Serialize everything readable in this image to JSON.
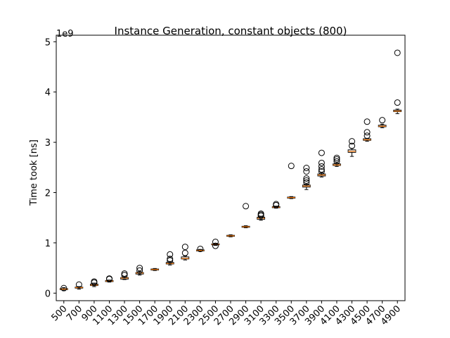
{
  "chart_data": {
    "type": "box",
    "title": "Instance Generation, constant objects (800)",
    "y_label": "Time took [ns]",
    "y_offset_label": "1e9",
    "categories": [
      "500",
      "700",
      "900",
      "1100",
      "1300",
      "1500",
      "1700",
      "1900",
      "2100",
      "2300",
      "2500",
      "2700",
      "2900",
      "3100",
      "3300",
      "3500",
      "3700",
      "3900",
      "4100",
      "4300",
      "4500",
      "4700",
      "4900"
    ],
    "boxes": [
      {
        "whislo": 0.05,
        "q1": 0.07,
        "median": 0.08,
        "q3": 0.09,
        "whishi": 0.11,
        "fliers": [
          0.1
        ]
      },
      {
        "whislo": 0.08,
        "q1": 0.1,
        "median": 0.11,
        "q3": 0.12,
        "whishi": 0.13,
        "fliers": [
          0.17
        ]
      },
      {
        "whislo": 0.13,
        "q1": 0.15,
        "median": 0.16,
        "q3": 0.18,
        "whishi": 0.2,
        "fliers": [
          0.21,
          0.23
        ]
      },
      {
        "whislo": 0.22,
        "q1": 0.23,
        "median": 0.24,
        "q3": 0.25,
        "whishi": 0.26,
        "fliers": [
          0.28,
          0.29
        ]
      },
      {
        "whislo": 0.27,
        "q1": 0.28,
        "median": 0.3,
        "q3": 0.31,
        "whishi": 0.33,
        "fliers": [
          0.36,
          0.39
        ]
      },
      {
        "whislo": 0.36,
        "q1": 0.38,
        "median": 0.4,
        "q3": 0.41,
        "whishi": 0.43,
        "fliers": [
          0.45,
          0.5
        ]
      },
      {
        "whislo": 0.45,
        "q1": 0.46,
        "median": 0.47,
        "q3": 0.48,
        "whishi": 0.49,
        "fliers": []
      },
      {
        "whislo": 0.56,
        "q1": 0.58,
        "median": 0.59,
        "q3": 0.61,
        "whishi": 0.63,
        "fliers": [
          0.65,
          0.68,
          0.77
        ]
      },
      {
        "whislo": 0.66,
        "q1": 0.68,
        "median": 0.69,
        "q3": 0.72,
        "whishi": 0.74,
        "fliers": [
          0.8,
          0.92
        ]
      },
      {
        "whislo": 0.83,
        "q1": 0.84,
        "median": 0.85,
        "q3": 0.86,
        "whishi": 0.87,
        "fliers": [
          0.88
        ]
      },
      {
        "whislo": 0.95,
        "q1": 0.96,
        "median": 0.97,
        "q3": 0.98,
        "whishi": 0.99,
        "fliers": [
          0.94,
          1.02
        ]
      },
      {
        "whislo": 1.12,
        "q1": 1.13,
        "median": 1.14,
        "q3": 1.15,
        "whishi": 1.16,
        "fliers": []
      },
      {
        "whislo": 1.3,
        "q1": 1.31,
        "median": 1.32,
        "q3": 1.33,
        "whishi": 1.34,
        "fliers": [
          1.73
        ]
      },
      {
        "whislo": 1.45,
        "q1": 1.47,
        "median": 1.49,
        "q3": 1.51,
        "whishi": 1.53,
        "fliers": [
          1.54,
          1.56,
          1.58
        ]
      },
      {
        "whislo": 1.69,
        "q1": 1.7,
        "median": 1.71,
        "q3": 1.72,
        "whishi": 1.73,
        "fliers": [
          1.75,
          1.77
        ]
      },
      {
        "whislo": 1.88,
        "q1": 1.89,
        "median": 1.9,
        "q3": 1.91,
        "whishi": 1.92,
        "fliers": [
          2.53
        ]
      },
      {
        "whislo": 2.06,
        "q1": 2.11,
        "median": 2.13,
        "q3": 2.15,
        "whishi": 2.17,
        "fliers": [
          2.2,
          2.24,
          2.28,
          2.42,
          2.49
        ]
      },
      {
        "whislo": 2.31,
        "q1": 2.33,
        "median": 2.35,
        "q3": 2.37,
        "whishi": 2.39,
        "fliers": [
          2.42,
          2.46,
          2.52,
          2.59,
          2.79
        ]
      },
      {
        "whislo": 2.52,
        "q1": 2.54,
        "median": 2.55,
        "q3": 2.57,
        "whishi": 2.59,
        "fliers": [
          2.62,
          2.66,
          2.69
        ]
      },
      {
        "whislo": 2.72,
        "q1": 2.8,
        "median": 2.82,
        "q3": 2.85,
        "whishi": 2.88,
        "fliers": [
          2.93,
          3.02
        ]
      },
      {
        "whislo": 3.02,
        "q1": 3.04,
        "median": 3.05,
        "q3": 3.07,
        "whishi": 3.08,
        "fliers": [
          3.13,
          3.2,
          3.41
        ]
      },
      {
        "whislo": 3.29,
        "q1": 3.31,
        "median": 3.32,
        "q3": 3.34,
        "whishi": 3.36,
        "fliers": [
          3.44
        ]
      },
      {
        "whislo": 3.57,
        "q1": 3.61,
        "median": 3.62,
        "q3": 3.64,
        "whishi": 3.66,
        "fliers": [
          3.79,
          4.78
        ]
      }
    ],
    "median_color": "#ff7f0e",
    "ylim": [
      -0.15,
      5.13
    ],
    "yticks": [
      0,
      1,
      2,
      3,
      4,
      5
    ]
  }
}
